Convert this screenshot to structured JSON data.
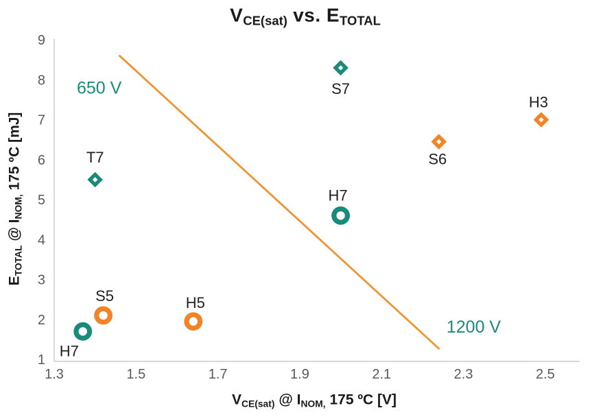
{
  "title_parts": [
    {
      "text": "V"
    },
    {
      "text": "CE(sat)"
    },
    {
      "text": " vs. E"
    },
    {
      "text": "TOTAL"
    }
  ],
  "y_axis_label_parts": [
    {
      "text": "E"
    },
    {
      "text": "TOTAL"
    },
    {
      "text": " @ I"
    },
    {
      "text": "NOM,"
    },
    {
      "text": " 175 ºC [mJ]"
    }
  ],
  "x_axis_label_parts": [
    {
      "text": "V"
    },
    {
      "text": "CE(sat)"
    },
    {
      "text": " @ I"
    },
    {
      "text": "NOM,"
    },
    {
      "text": " 175 ºC [V]"
    }
  ],
  "chart_data": {
    "type": "scatter",
    "title": "VCE(sat) vs. ETOTAL",
    "xlabel": "VCE(sat) @ INOM, 175 ºC [V]",
    "ylabel": "ETOTAL @ INOM, 175 ºC [mJ]",
    "xlim": [
      1.3,
      2.584
    ],
    "ylim": [
      0.95,
      9.02
    ],
    "grid": false,
    "legend": "none",
    "x_ticks": [
      {
        "label": "1.3",
        "v": 1.3
      },
      {
        "label": "1.5",
        "v": 1.5
      },
      {
        "label": "1.7",
        "v": 1.7
      },
      {
        "label": "1.9",
        "v": 1.9
      },
      {
        "label": "2.1",
        "v": 2.1
      },
      {
        "label": "2.3",
        "v": 2.3
      },
      {
        "label": "2.5",
        "v": 2.5
      }
    ],
    "y_ticks": [
      {
        "label": "1",
        "v": 1
      },
      {
        "label": "2",
        "v": 2
      },
      {
        "label": "3",
        "v": 3
      },
      {
        "label": "4",
        "v": 4
      },
      {
        "label": "5",
        "v": 5
      },
      {
        "label": "6",
        "v": 6
      },
      {
        "label": "7",
        "v": 7
      },
      {
        "label": "8",
        "v": 8
      },
      {
        "label": "9",
        "v": 9
      }
    ],
    "colors": {
      "teal": "#1A8A7A",
      "orange": "#F08426",
      "line_orange": "#EE9432",
      "axis": "#C9C9C9",
      "tick_text": "#595959",
      "label_text": "#1F1F1F"
    },
    "points": [
      {
        "label": "S7",
        "x": 2.0,
        "y": 8.3,
        "marker": "diamond",
        "color": "teal",
        "label_offset": [
          0,
          30
        ]
      },
      {
        "label": "T7",
        "x": 1.4,
        "y": 5.5,
        "marker": "diamond",
        "color": "teal",
        "label_offset": [
          0,
          -33
        ]
      },
      {
        "label": "H7",
        "x": 2.0,
        "y": 4.6,
        "marker": "circle",
        "color": "teal",
        "label_offset": [
          -4,
          -30
        ]
      },
      {
        "label": "H7",
        "x": 1.37,
        "y": 1.7,
        "marker": "circle",
        "color": "teal",
        "label_offset": [
          -20,
          28
        ]
      },
      {
        "label": "S5",
        "x": 1.42,
        "y": 2.1,
        "marker": "circle",
        "color": "orange",
        "label_offset": [
          2,
          -29
        ]
      },
      {
        "label": "H5",
        "x": 1.64,
        "y": 1.95,
        "marker": "circle",
        "color": "orange",
        "label_offset": [
          3,
          -28
        ]
      },
      {
        "label": "S6",
        "x": 2.24,
        "y": 6.45,
        "marker": "diamond",
        "color": "orange",
        "label_offset": [
          -2,
          25
        ]
      },
      {
        "label": "H3",
        "x": 2.49,
        "y": 7.0,
        "marker": "diamond",
        "color": "orange",
        "label_offset": [
          -4,
          -26
        ]
      }
    ],
    "line": {
      "x1": 1.46,
      "y1": 8.6,
      "x2": 2.24,
      "y2": 1.27,
      "color": "line_orange"
    },
    "annotations": [
      {
        "text": "650 V",
        "x": 1.41,
        "y": 7.79,
        "color": "teal"
      },
      {
        "text": "1200 V",
        "x": 2.325,
        "y": 1.81,
        "color": "teal"
      }
    ]
  }
}
